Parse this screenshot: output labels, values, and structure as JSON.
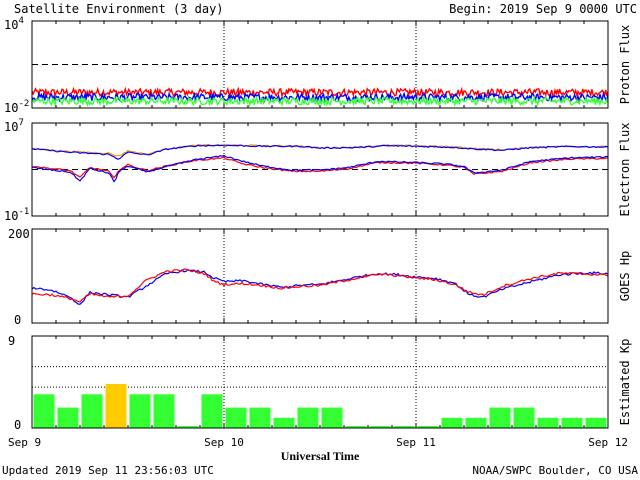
{
  "header": {
    "title": "Satellite Environment (3 day)",
    "begin": "Begin:  2019 Sep 9 0000 UTC"
  },
  "footer": {
    "updated": "Updated 2019 Sep 11 23:56:03 UTC",
    "credit": "NOAA/SWPC Boulder, CO USA",
    "xlabel": "Universal Time"
  },
  "x_ticks": [
    "Sep 9",
    "Sep 10",
    "Sep 11",
    "Sep 12"
  ],
  "colors": {
    "red": "#ff0000",
    "blue": "#0000ff",
    "green": "#33ff33",
    "orange": "#ff9900",
    "kp_green": "#33ff33",
    "kp_yellow": "#ffcc00"
  },
  "chart_data": [
    {
      "type": "line",
      "panel": "proton",
      "ylabel": "Proton Flux",
      "yscale": "log",
      "ylim": [
        0.01,
        10000
      ],
      "ytick_labels": [
        {
          "base": "10",
          "exp": "4"
        },
        {
          "base": "10",
          "exp": "-2"
        }
      ],
      "threshold": 10,
      "xrange_days": [
        0,
        3
      ],
      "series": [
        {
          "color": "#ff0000",
          "level": 0.12,
          "noise": 0.25
        },
        {
          "color": "#0000ff",
          "level": 0.055,
          "noise": 0.25
        },
        {
          "color": "#33ff33",
          "level": 0.03,
          "noise": 0.25
        }
      ]
    },
    {
      "type": "line",
      "panel": "electron",
      "ylabel": "Electron Flux",
      "yscale": "log",
      "ylim": [
        0.1,
        10000000
      ],
      "ytick_labels": [
        {
          "base": "10",
          "exp": "7"
        },
        {
          "base": "10",
          "exp": "-1"
        }
      ],
      "threshold": 1000,
      "xrange_days": [
        0,
        3
      ],
      "series": [
        {
          "color": "#ff9900",
          "points": [
            [
              0,
              60000
            ],
            [
              0.2,
              35000
            ],
            [
              0.4,
              25000
            ],
            [
              0.45,
              14000
            ],
            [
              0.5,
              40000
            ],
            [
              0.6,
              20000
            ],
            [
              0.7,
              60000
            ],
            [
              0.85,
              120000
            ],
            [
              1.0,
              130000
            ],
            [
              1.2,
              110000
            ],
            [
              1.4,
              100000
            ],
            [
              1.5,
              70000
            ],
            [
              1.7,
              80000
            ],
            [
              1.85,
              120000
            ],
            [
              2.0,
              110000
            ],
            [
              2.2,
              90000
            ],
            [
              2.3,
              65000
            ],
            [
              2.45,
              50000
            ],
            [
              2.6,
              80000
            ],
            [
              2.8,
              100000
            ],
            [
              3.0,
              90000
            ]
          ]
        },
        {
          "color": "#0000ff",
          "points": [
            [
              0,
              60000
            ],
            [
              0.2,
              30000
            ],
            [
              0.4,
              20000
            ],
            [
              0.45,
              8000
            ],
            [
              0.5,
              30000
            ],
            [
              0.6,
              18000
            ],
            [
              0.7,
              55000
            ],
            [
              0.85,
              110000
            ],
            [
              1.0,
              120000
            ],
            [
              1.2,
              100000
            ],
            [
              1.4,
              100000
            ],
            [
              1.5,
              70000
            ],
            [
              1.7,
              80000
            ],
            [
              1.85,
              110000
            ],
            [
              2.0,
              100000
            ],
            [
              2.2,
              80000
            ],
            [
              2.3,
              60000
            ],
            [
              2.45,
              45000
            ],
            [
              2.6,
              75000
            ],
            [
              2.8,
              95000
            ],
            [
              3.0,
              85000
            ]
          ]
        },
        {
          "color": "#ff0000",
          "points": [
            [
              0,
              2000
            ],
            [
              0.1,
              1200
            ],
            [
              0.2,
              800
            ],
            [
              0.25,
              200
            ],
            [
              0.3,
              1500
            ],
            [
              0.4,
              700
            ],
            [
              0.43,
              150
            ],
            [
              0.45,
              900
            ],
            [
              0.5,
              2500
            ],
            [
              0.6,
              800
            ],
            [
              0.7,
              2000
            ],
            [
              0.85,
              6000
            ],
            [
              1.0,
              10000
            ],
            [
              1.1,
              3000
            ],
            [
              1.2,
              1500
            ],
            [
              1.35,
              700
            ],
            [
              1.5,
              700
            ],
            [
              1.65,
              1200
            ],
            [
              1.8,
              4000
            ],
            [
              2.0,
              3500
            ],
            [
              2.15,
              2500
            ],
            [
              2.25,
              1500
            ],
            [
              2.3,
              400
            ],
            [
              2.45,
              700
            ],
            [
              2.6,
              4000
            ],
            [
              2.8,
              8000
            ],
            [
              3.0,
              9000
            ]
          ]
        },
        {
          "color": "#0000ff",
          "points": [
            [
              0,
              1500
            ],
            [
              0.1,
              900
            ],
            [
              0.2,
              600
            ],
            [
              0.25,
              100
            ],
            [
              0.3,
              1200
            ],
            [
              0.4,
              500
            ],
            [
              0.43,
              80
            ],
            [
              0.45,
              600
            ],
            [
              0.5,
              2000
            ],
            [
              0.6,
              600
            ],
            [
              0.7,
              1800
            ],
            [
              0.85,
              7000
            ],
            [
              1.0,
              15000
            ],
            [
              1.1,
              5000
            ],
            [
              1.2,
              2000
            ],
            [
              1.35,
              900
            ],
            [
              1.5,
              900
            ],
            [
              1.65,
              1500
            ],
            [
              1.8,
              5000
            ],
            [
              2.0,
              4000
            ],
            [
              2.15,
              3000
            ],
            [
              2.25,
              1800
            ],
            [
              2.3,
              500
            ],
            [
              2.45,
              900
            ],
            [
              2.6,
              5000
            ],
            [
              2.8,
              10000
            ],
            [
              3.0,
              12000
            ]
          ]
        }
      ]
    },
    {
      "type": "line",
      "panel": "goes_hp",
      "ylabel": "GOES Hp",
      "ylim": [
        0,
        200
      ],
      "yticks": [
        "200",
        "0"
      ],
      "xrange_days": [
        0,
        3
      ],
      "series": [
        {
          "color": "#0000ff",
          "points": [
            [
              0,
              75
            ],
            [
              0.1,
              70
            ],
            [
              0.2,
              55
            ],
            [
              0.25,
              38
            ],
            [
              0.3,
              65
            ],
            [
              0.4,
              60
            ],
            [
              0.5,
              55
            ],
            [
              0.6,
              80
            ],
            [
              0.7,
              105
            ],
            [
              0.8,
              112
            ],
            [
              0.9,
              108
            ],
            [
              0.95,
              95
            ],
            [
              1.0,
              88
            ],
            [
              1.1,
              90
            ],
            [
              1.2,
              82
            ],
            [
              1.3,
              76
            ],
            [
              1.4,
              80
            ],
            [
              1.5,
              82
            ],
            [
              1.6,
              90
            ],
            [
              1.7,
              98
            ],
            [
              1.8,
              105
            ],
            [
              1.9,
              103
            ],
            [
              2.0,
              98
            ],
            [
              2.1,
              95
            ],
            [
              2.2,
              85
            ],
            [
              2.28,
              60
            ],
            [
              2.35,
              55
            ],
            [
              2.45,
              72
            ],
            [
              2.6,
              88
            ],
            [
              2.75,
              103
            ],
            [
              2.9,
              107
            ],
            [
              3.0,
              105
            ]
          ]
        },
        {
          "color": "#ff0000",
          "points": [
            [
              0,
              62
            ],
            [
              0.1,
              60
            ],
            [
              0.2,
              52
            ],
            [
              0.25,
              45
            ],
            [
              0.3,
              62
            ],
            [
              0.4,
              55
            ],
            [
              0.5,
              58
            ],
            [
              0.6,
              92
            ],
            [
              0.7,
              110
            ],
            [
              0.8,
              113
            ],
            [
              0.9,
              105
            ],
            [
              0.95,
              88
            ],
            [
              1.0,
              82
            ],
            [
              1.1,
              84
            ],
            [
              1.2,
              80
            ],
            [
              1.3,
              74
            ],
            [
              1.4,
              78
            ],
            [
              1.5,
              80
            ],
            [
              1.6,
              88
            ],
            [
              1.7,
              96
            ],
            [
              1.8,
              104
            ],
            [
              1.9,
              101
            ],
            [
              2.0,
              96
            ],
            [
              2.1,
              92
            ],
            [
              2.2,
              82
            ],
            [
              2.28,
              65
            ],
            [
              2.35,
              60
            ],
            [
              2.45,
              78
            ],
            [
              2.6,
              95
            ],
            [
              2.75,
              106
            ],
            [
              2.9,
              104
            ],
            [
              3.0,
              102
            ]
          ]
        }
      ]
    },
    {
      "type": "bar",
      "panel": "kp",
      "ylabel": "Estimated Kp",
      "ylim": [
        0,
        9
      ],
      "yticks": [
        "9",
        "0"
      ],
      "values": [
        3.3,
        2,
        3.3,
        4.3,
        3.3,
        3.3,
        0.2,
        3.3,
        2,
        2,
        1,
        2,
        2,
        0.2,
        0.2,
        0.2,
        0.2,
        1,
        1,
        2,
        2,
        1,
        1,
        1
      ],
      "colors": [
        "green",
        "green",
        "green",
        "yellow",
        "green",
        "green",
        "green",
        "green",
        "green",
        "green",
        "green",
        "green",
        "green",
        "green",
        "green",
        "green",
        "green",
        "green",
        "green",
        "green",
        "green",
        "green",
        "green",
        "green"
      ]
    }
  ]
}
